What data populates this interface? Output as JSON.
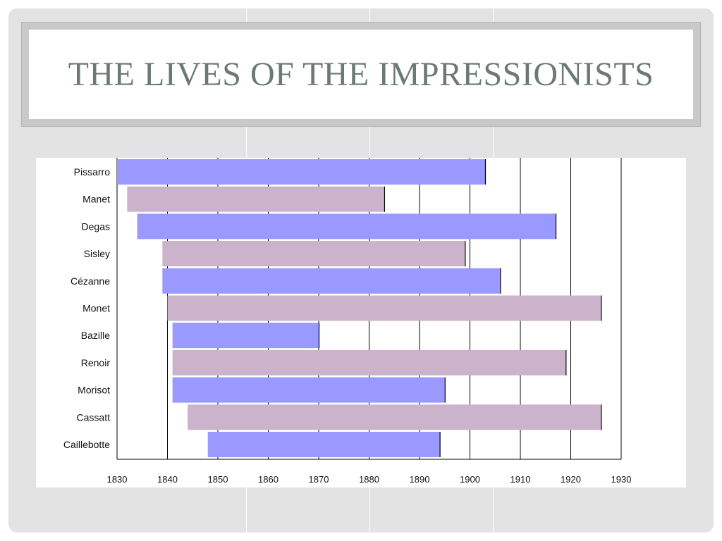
{
  "slide": {
    "title": "THE LIVES OF THE IMPRESSIONISTS",
    "title_color": "#6a7a72",
    "background_color": "#e3e3e3"
  },
  "chart_data": {
    "type": "bar",
    "orientation": "horizontal",
    "subtype": "timeline",
    "title": "",
    "xlabel": "",
    "ylabel": "",
    "xlim": [
      1830,
      1930
    ],
    "xticks": [
      1830,
      1840,
      1850,
      1860,
      1870,
      1880,
      1890,
      1900,
      1910,
      1920,
      1930
    ],
    "grid": "vertical",
    "colors": [
      "#9999ff",
      "#ccb3cc"
    ],
    "bars": [
      {
        "name": "Pissarro",
        "start": 1830,
        "end": 1903
      },
      {
        "name": "Manet",
        "start": 1832,
        "end": 1883
      },
      {
        "name": "Degas",
        "start": 1834,
        "end": 1917
      },
      {
        "name": "Sisley",
        "start": 1839,
        "end": 1899
      },
      {
        "name": "Cézanne",
        "start": 1839,
        "end": 1906
      },
      {
        "name": "Monet",
        "start": 1840,
        "end": 1926
      },
      {
        "name": "Bazille",
        "start": 1841,
        "end": 1870
      },
      {
        "name": "Renoir",
        "start": 1841,
        "end": 1919
      },
      {
        "name": "Morisot",
        "start": 1841,
        "end": 1895
      },
      {
        "name": "Cassatt",
        "start": 1844,
        "end": 1926
      },
      {
        "name": "Caillebotte",
        "start": 1848,
        "end": 1894
      }
    ]
  }
}
